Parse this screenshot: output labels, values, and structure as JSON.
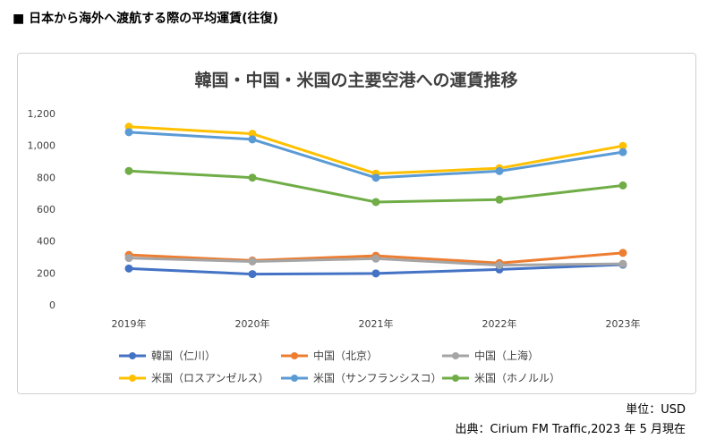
{
  "page": {
    "heading": "■ 日本から海外へ渡航する際の平均運賃(往復)",
    "unit_note": "単位：USD",
    "source_note": "出典：Cirium FM Traffic,2023 年 5 月現在"
  },
  "chart_data": {
    "type": "line",
    "title": "韓国・中国・米国の主要空港への運賃推移",
    "xlabel": "",
    "ylabel": "",
    "categories": [
      "2019年",
      "2020年",
      "2021年",
      "2022年",
      "2023年"
    ],
    "ylim": [
      0,
      1200
    ],
    "yticks": [
      0,
      200,
      400,
      600,
      800,
      1000,
      1200
    ],
    "ytick_labels": [
      "0",
      "200",
      "400",
      "600",
      "800",
      "1,000",
      "1,200"
    ],
    "grid": false,
    "legend_position": "bottom",
    "series": [
      {
        "name": "韓国（仁川）",
        "color": "#4472c4",
        "values": [
          228,
          193,
          197,
          222,
          252
        ]
      },
      {
        "name": "中国（北京）",
        "color": "#ed7d31",
        "values": [
          313,
          278,
          308,
          262,
          326
        ]
      },
      {
        "name": "中国（上海）",
        "color": "#a5a5a5",
        "values": [
          294,
          272,
          290,
          249,
          257
        ]
      },
      {
        "name": "米国（ロスアンゼルス）",
        "color": "#ffc000",
        "values": [
          1117,
          1073,
          823,
          857,
          997
        ]
      },
      {
        "name": "米国（サンフランシスコ）",
        "color": "#5b9bd5",
        "values": [
          1083,
          1038,
          797,
          839,
          958
        ]
      },
      {
        "name": "米国（ホノルル）",
        "color": "#70ad47",
        "values": [
          840,
          798,
          645,
          660,
          749
        ]
      }
    ]
  }
}
